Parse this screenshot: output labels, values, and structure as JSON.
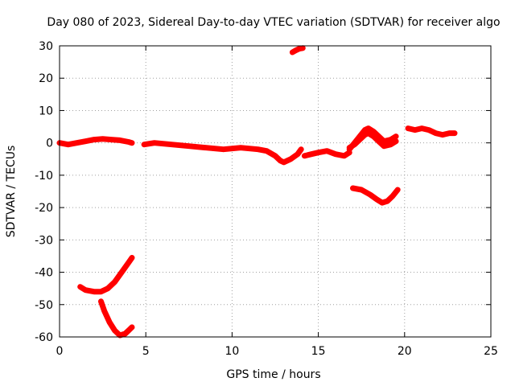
{
  "chart_data": {
    "type": "line",
    "title": "Day 080 of 2023, Sidereal Day-to-day VTEC variation (SDTVAR) for receiver algo",
    "xlabel": "GPS time / hours",
    "ylabel": "SDTVAR / TECUs",
    "xlim": [
      0,
      25
    ],
    "ylim": [
      -60,
      30
    ],
    "xticks": [
      0,
      5,
      10,
      15,
      20,
      25
    ],
    "yticks": [
      -60,
      -50,
      -40,
      -30,
      -20,
      -10,
      0,
      10,
      20,
      30
    ],
    "grid": true,
    "color": "#ff0000",
    "series": [
      {
        "name": "s1",
        "x": [
          0.0,
          0.5,
          1.0,
          1.5,
          2.0,
          2.5,
          3.0,
          3.5,
          4.0,
          4.2
        ],
        "y": [
          0,
          -0.5,
          0,
          0.5,
          1,
          1.2,
          1,
          0.8,
          0.3,
          0
        ]
      },
      {
        "name": "s2",
        "x": [
          1.2,
          1.5,
          2.0,
          2.4,
          2.8,
          3.2,
          3.6,
          4.0,
          4.2
        ],
        "y": [
          -44.5,
          -45.5,
          -46,
          -46,
          -45,
          -43,
          -40,
          -37,
          -35.5
        ]
      },
      {
        "name": "s3",
        "x": [
          2.4,
          2.6,
          2.9,
          3.2,
          3.5,
          3.8,
          4.0,
          4.2
        ],
        "y": [
          -49,
          -52,
          -55.5,
          -58,
          -59.5,
          -59,
          -58,
          -57
        ]
      },
      {
        "name": "s4",
        "x": [
          4.9,
          5.5,
          6.5,
          7.5,
          8.5,
          9.5,
          10.5,
          11.5,
          12.0,
          12.5,
          12.8,
          13.0,
          13.4,
          13.8,
          14.0
        ],
        "y": [
          -0.5,
          0,
          -0.5,
          -1,
          -1.5,
          -2,
          -1.5,
          -2,
          -2.5,
          -4,
          -5.5,
          -6,
          -5,
          -3.5,
          -2
        ]
      },
      {
        "name": "s5",
        "x": [
          13.5,
          13.7,
          13.9,
          14.1
        ],
        "y": [
          28,
          28.6,
          29.1,
          29.3
        ]
      },
      {
        "name": "s6",
        "x": [
          14.2,
          14.6,
          15.0,
          15.5,
          16.0,
          16.5,
          16.8
        ],
        "y": [
          -4,
          -3.5,
          -3,
          -2.5,
          -3.5,
          -4,
          -3
        ]
      },
      {
        "name": "s7",
        "x": [
          16.8,
          17.1,
          17.4,
          17.7,
          17.9,
          18.2,
          18.5,
          18.8,
          19.2,
          19.5
        ],
        "y": [
          -2,
          0,
          2,
          4,
          4.5,
          3.5,
          2,
          0.5,
          1,
          2
        ]
      },
      {
        "name": "s8",
        "x": [
          16.8,
          17.1,
          17.4,
          17.7,
          17.9,
          18.2,
          18.5,
          18.8,
          19.2,
          19.5
        ],
        "y": [
          -1.5,
          -0.5,
          1,
          2.5,
          3,
          2,
          0.5,
          -1,
          -0.5,
          0.5
        ]
      },
      {
        "name": "s9",
        "x": [
          17.0,
          17.5,
          18.0,
          18.4,
          18.7,
          19.0,
          19.3,
          19.6
        ],
        "y": [
          -14,
          -14.5,
          -16,
          -17.5,
          -18.5,
          -18,
          -16.5,
          -14.5
        ]
      },
      {
        "name": "s10",
        "x": [
          20.2,
          20.6,
          21.0,
          21.4,
          21.8,
          22.2,
          22.6,
          22.9
        ],
        "y": [
          4.5,
          4,
          4.5,
          4,
          3,
          2.5,
          3,
          3
        ]
      }
    ]
  }
}
